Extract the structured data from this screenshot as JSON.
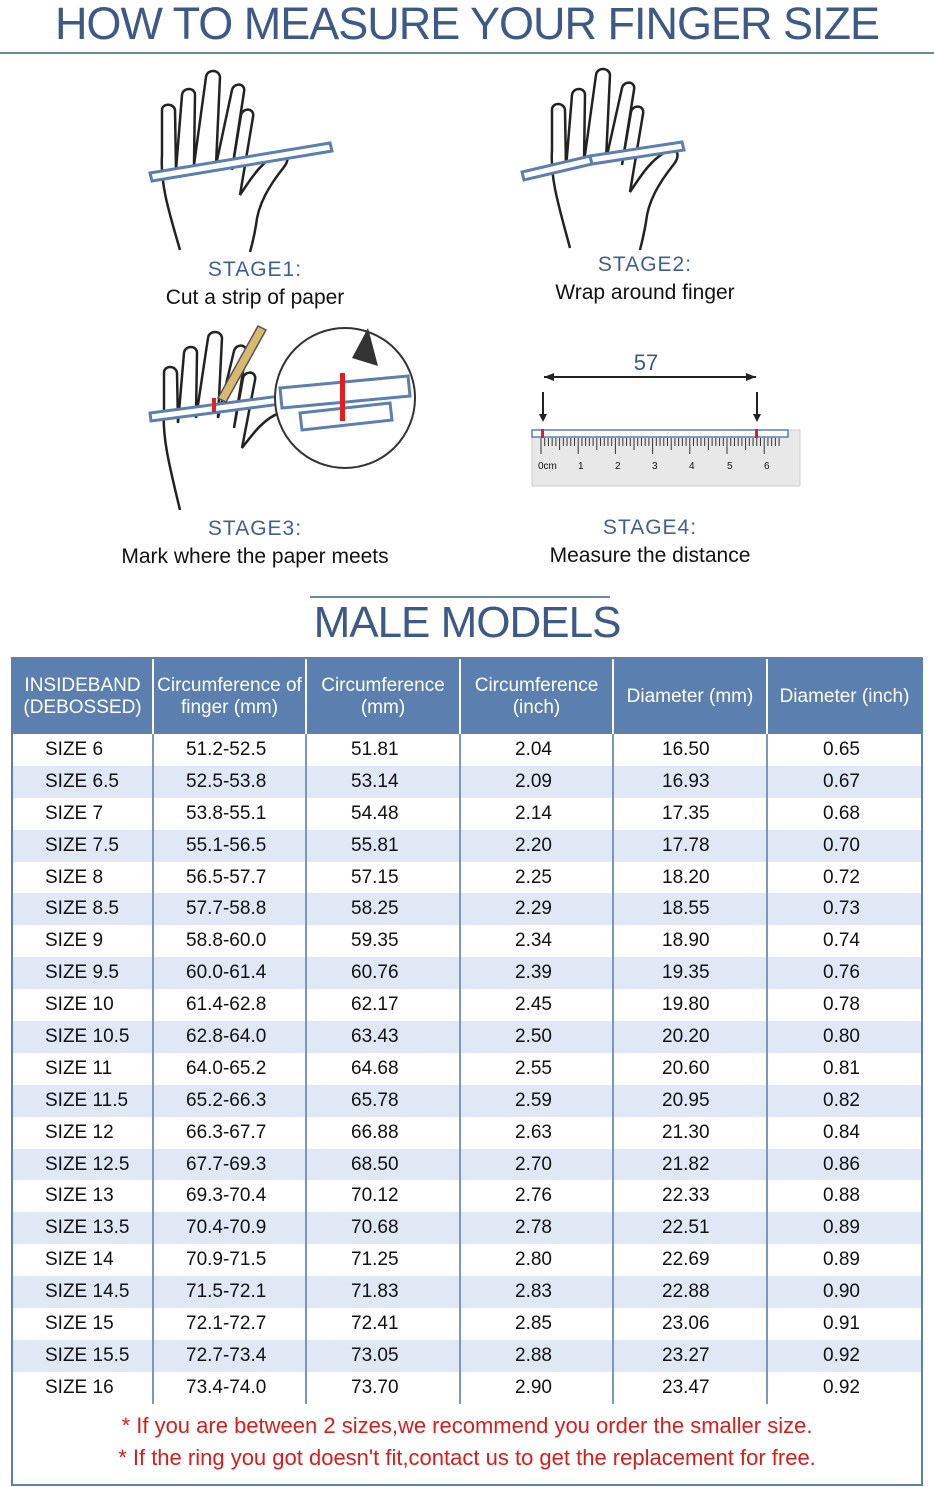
{
  "header": {
    "title": "HOW TO MEASURE YOUR FINGER SIZE"
  },
  "stages": [
    {
      "heading": "STAGE1:",
      "description": "Cut a strip of paper"
    },
    {
      "heading": "STAGE2:",
      "description": "Wrap around finger"
    },
    {
      "heading": "STAGE3:",
      "description": "Mark where the paper meets"
    },
    {
      "heading": "STAGE4:",
      "description": "Measure the distance"
    }
  ],
  "ruler": {
    "measurement": "57",
    "labels": [
      "0cm",
      "1",
      "2",
      "3",
      "4",
      "5",
      "6"
    ]
  },
  "section": {
    "title": "MALE MODELS"
  },
  "table": {
    "headers": [
      "INSIDEBAND (DEBOSSED)",
      "Circumference of finger (mm)",
      "Circumference (mm)",
      "Circumference (inch)",
      "Diameter (mm)",
      "Diameter (inch)"
    ],
    "rows": [
      [
        "SIZE 6",
        "51.2-52.5",
        "51.81",
        "2.04",
        "16.50",
        "0.65"
      ],
      [
        "SIZE 6.5",
        "52.5-53.8",
        "53.14",
        "2.09",
        "16.93",
        "0.67"
      ],
      [
        "SIZE 7",
        "53.8-55.1",
        "54.48",
        "2.14",
        "17.35",
        "0.68"
      ],
      [
        "SIZE 7.5",
        "55.1-56.5",
        "55.81",
        "2.20",
        "17.78",
        "0.70"
      ],
      [
        "SIZE 8",
        "56.5-57.7",
        "57.15",
        "2.25",
        "18.20",
        "0.72"
      ],
      [
        "SIZE 8.5",
        "57.7-58.8",
        "58.25",
        "2.29",
        "18.55",
        "0.73"
      ],
      [
        "SIZE 9",
        "58.8-60.0",
        "59.35",
        "2.34",
        "18.90",
        "0.74"
      ],
      [
        "SIZE 9.5",
        "60.0-61.4",
        "60.76",
        "2.39",
        "19.35",
        "0.76"
      ],
      [
        "SIZE 10",
        "61.4-62.8",
        "62.17",
        "2.45",
        "19.80",
        "0.78"
      ],
      [
        "SIZE 10.5",
        "62.8-64.0",
        "63.43",
        "2.50",
        "20.20",
        "0.80"
      ],
      [
        "SIZE 11",
        "64.0-65.2",
        "64.68",
        "2.55",
        "20.60",
        "0.81"
      ],
      [
        "SIZE 11.5",
        "65.2-66.3",
        "65.78",
        "2.59",
        "20.95",
        "0.82"
      ],
      [
        "SIZE 12",
        "66.3-67.7",
        "66.88",
        "2.63",
        "21.30",
        "0.84"
      ],
      [
        "SIZE 12.5",
        "67.7-69.3",
        "68.50",
        "2.70",
        "21.82",
        "0.86"
      ],
      [
        "SIZE 13",
        "69.3-70.4",
        "70.12",
        "2.76",
        "22.33",
        "0.88"
      ],
      [
        "SIZE 13.5",
        "70.4-70.9",
        "70.68",
        "2.78",
        "22.51",
        "0.89"
      ],
      [
        "SIZE 14",
        "70.9-71.5",
        "71.25",
        "2.80",
        "22.69",
        "0.89"
      ],
      [
        "SIZE 14.5",
        "71.5-72.1",
        "71.83",
        "2.83",
        "22.88",
        "0.90"
      ],
      [
        "SIZE 15",
        "72.1-72.7",
        "72.41",
        "2.85",
        "23.06",
        "0.91"
      ],
      [
        "SIZE 15.5",
        "72.7-73.4",
        "73.05",
        "2.88",
        "23.27",
        "0.92"
      ],
      [
        "SIZE 16",
        "73.4-74.0",
        "73.70",
        "2.90",
        "23.47",
        "0.92"
      ]
    ]
  },
  "notes": [
    "* If you are between 2 sizes,we recommend you order the smaller size.",
    "* If the ring you got doesn't fit,contact us to get the replacement for free."
  ],
  "colors": {
    "title": "#3d5a86",
    "header_bg": "#5b7fae",
    "stripe": "#dfe8f4",
    "note": "#d91c1c"
  }
}
